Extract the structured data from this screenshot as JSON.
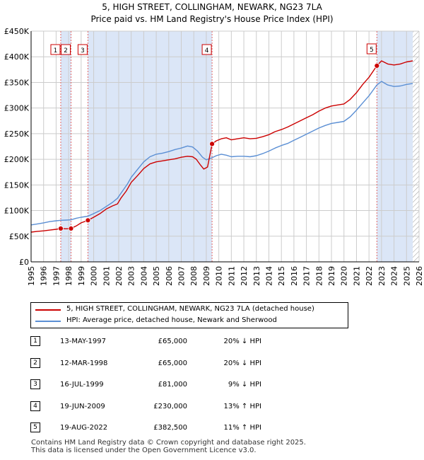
{
  "title": "5, HIGH STREET, COLLINGHAM, NEWARK, NG23 7LA",
  "subtitle": "Price paid vs. HM Land Registry's House Price Index (HPI)",
  "colors": {
    "property": "#cc0000",
    "hpi": "#5b8fd4",
    "shade": "#dbe6f7",
    "grid": "#cccccc",
    "sale_vline": "#e06666",
    "hatch": "#999999"
  },
  "chart_data": {
    "type": "line",
    "title": "5, HIGH STREET, COLLINGHAM, NEWARK, NG23 7LA",
    "xlim": [
      1995,
      2026
    ],
    "ylim": [
      0,
      450000
    ],
    "x_ticks": [
      1995,
      1996,
      1997,
      1998,
      1999,
      2000,
      2001,
      2002,
      2003,
      2004,
      2005,
      2006,
      2007,
      2008,
      2009,
      2010,
      2011,
      2012,
      2013,
      2014,
      2015,
      2016,
      2017,
      2018,
      2019,
      2020,
      2021,
      2022,
      2023,
      2024,
      2025,
      2026
    ],
    "y_ticks": [
      {
        "value": 0,
        "label": "£0"
      },
      {
        "value": 50000,
        "label": "£50K"
      },
      {
        "value": 100000,
        "label": "£100K"
      },
      {
        "value": 150000,
        "label": "£150K"
      },
      {
        "value": 200000,
        "label": "£200K"
      },
      {
        "value": 250000,
        "label": "£250K"
      },
      {
        "value": 300000,
        "label": "£300K"
      },
      {
        "value": 350000,
        "label": "£350K"
      },
      {
        "value": 400000,
        "label": "£400K"
      },
      {
        "value": 450000,
        "label": "£450K"
      }
    ],
    "shaded_periods": [
      [
        1997.37,
        1998.19
      ],
      [
        1999.54,
        2009.46
      ],
      [
        2022.63,
        2025.5
      ]
    ],
    "future_hatch_from": 2025.5,
    "series": [
      {
        "name": "5, HIGH STREET, COLLINGHAM, NEWARK, NG23 7LA (detached house)",
        "color": "#cc0000",
        "points": [
          [
            1995.0,
            58000
          ],
          [
            1995.5,
            59500
          ],
          [
            1996.0,
            60500
          ],
          [
            1996.5,
            62000
          ],
          [
            1997.0,
            63500
          ],
          [
            1997.37,
            65000
          ],
          [
            1997.8,
            64500
          ],
          [
            1998.19,
            65000
          ],
          [
            1998.6,
            70000
          ],
          [
            1999.0,
            76000
          ],
          [
            1999.54,
            81000
          ],
          [
            2000.0,
            87000
          ],
          [
            2000.5,
            94000
          ],
          [
            2001.0,
            103000
          ],
          [
            2001.5,
            109000
          ],
          [
            2001.9,
            113000
          ],
          [
            2002.2,
            125000
          ],
          [
            2002.6,
            138000
          ],
          [
            2003.0,
            155000
          ],
          [
            2003.5,
            168000
          ],
          [
            2004.0,
            182000
          ],
          [
            2004.5,
            191000
          ],
          [
            2005.0,
            195000
          ],
          [
            2005.5,
            197000
          ],
          [
            2006.0,
            199000
          ],
          [
            2006.5,
            201000
          ],
          [
            2007.0,
            204000
          ],
          [
            2007.5,
            206000
          ],
          [
            2007.9,
            205000
          ],
          [
            2008.2,
            200000
          ],
          [
            2008.5,
            190000
          ],
          [
            2008.8,
            181000
          ],
          [
            2009.1,
            185000
          ],
          [
            2009.46,
            230000
          ],
          [
            2009.8,
            236000
          ],
          [
            2010.2,
            240000
          ],
          [
            2010.6,
            242000
          ],
          [
            2011.0,
            238000
          ],
          [
            2011.5,
            240000
          ],
          [
            2012.0,
            242000
          ],
          [
            2012.5,
            240000
          ],
          [
            2013.0,
            241000
          ],
          [
            2013.5,
            244000
          ],
          [
            2014.0,
            248000
          ],
          [
            2014.5,
            254000
          ],
          [
            2015.0,
            258000
          ],
          [
            2015.5,
            263000
          ],
          [
            2016.0,
            269000
          ],
          [
            2016.5,
            275000
          ],
          [
            2017.0,
            281000
          ],
          [
            2017.5,
            287000
          ],
          [
            2018.0,
            294000
          ],
          [
            2018.5,
            300000
          ],
          [
            2019.0,
            304000
          ],
          [
            2019.5,
            306000
          ],
          [
            2020.0,
            308000
          ],
          [
            2020.5,
            317000
          ],
          [
            2021.0,
            330000
          ],
          [
            2021.5,
            346000
          ],
          [
            2022.0,
            360000
          ],
          [
            2022.63,
            382500
          ],
          [
            2023.0,
            392000
          ],
          [
            2023.5,
            386000
          ],
          [
            2024.0,
            384000
          ],
          [
            2024.5,
            386000
          ],
          [
            2025.0,
            390000
          ],
          [
            2025.5,
            392000
          ]
        ]
      },
      {
        "name": "HPI: Average price, detached house, Newark and Sherwood",
        "color": "#5b8fd4",
        "points": [
          [
            1995.0,
            72000
          ],
          [
            1995.5,
            74000
          ],
          [
            1996.0,
            76000
          ],
          [
            1996.5,
            78500
          ],
          [
            1997.0,
            80000
          ],
          [
            1997.37,
            81000
          ],
          [
            1997.8,
            81500
          ],
          [
            1998.19,
            82000
          ],
          [
            1998.6,
            85000
          ],
          [
            1999.0,
            87000
          ],
          [
            1999.54,
            89000
          ],
          [
            2000.0,
            94000
          ],
          [
            2000.5,
            100000
          ],
          [
            2001.0,
            108000
          ],
          [
            2001.5,
            116000
          ],
          [
            2001.9,
            124000
          ],
          [
            2002.3,
            138000
          ],
          [
            2002.7,
            152000
          ],
          [
            2003.0,
            165000
          ],
          [
            2003.5,
            180000
          ],
          [
            2004.0,
            195000
          ],
          [
            2004.5,
            205000
          ],
          [
            2005.0,
            210000
          ],
          [
            2005.5,
            212000
          ],
          [
            2006.0,
            215000
          ],
          [
            2006.5,
            219000
          ],
          [
            2007.0,
            222000
          ],
          [
            2007.5,
            226000
          ],
          [
            2007.9,
            224000
          ],
          [
            2008.3,
            216000
          ],
          [
            2008.7,
            204000
          ],
          [
            2009.0,
            199000
          ],
          [
            2009.46,
            203000
          ],
          [
            2009.8,
            207000
          ],
          [
            2010.2,
            210000
          ],
          [
            2010.6,
            208000
          ],
          [
            2011.0,
            205000
          ],
          [
            2011.5,
            206000
          ],
          [
            2012.0,
            206000
          ],
          [
            2012.5,
            205000
          ],
          [
            2013.0,
            207000
          ],
          [
            2013.5,
            211000
          ],
          [
            2014.0,
            216000
          ],
          [
            2014.5,
            222000
          ],
          [
            2015.0,
            227000
          ],
          [
            2015.5,
            231000
          ],
          [
            2016.0,
            237000
          ],
          [
            2016.5,
            243000
          ],
          [
            2017.0,
            249000
          ],
          [
            2017.5,
            255000
          ],
          [
            2018.0,
            261000
          ],
          [
            2018.5,
            266000
          ],
          [
            2019.0,
            270000
          ],
          [
            2019.5,
            272000
          ],
          [
            2020.0,
            274000
          ],
          [
            2020.5,
            283000
          ],
          [
            2021.0,
            296000
          ],
          [
            2021.5,
            310000
          ],
          [
            2022.0,
            324000
          ],
          [
            2022.63,
            345000
          ],
          [
            2023.0,
            352000
          ],
          [
            2023.5,
            345000
          ],
          [
            2024.0,
            342000
          ],
          [
            2024.5,
            343000
          ],
          [
            2025.0,
            346000
          ],
          [
            2025.5,
            348000
          ]
        ]
      }
    ],
    "sales": [
      {
        "id": "1",
        "x": 1997.37,
        "price": 65000
      },
      {
        "id": "2",
        "x": 1998.19,
        "price": 65000
      },
      {
        "id": "3",
        "x": 1999.54,
        "price": 81000
      },
      {
        "id": "4",
        "x": 2009.46,
        "price": 230000
      },
      {
        "id": "5",
        "x": 2022.63,
        "price": 382500
      }
    ]
  },
  "legend": {
    "property_label": "5, HIGH STREET, COLLINGHAM, NEWARK, NG23 7LA (detached house)",
    "hpi_label": "HPI: Average price, detached house, Newark and Sherwood"
  },
  "sales_table": [
    {
      "num": "1",
      "date": "13-MAY-1997",
      "price": "£65,000",
      "hpi": "20% ↓ HPI"
    },
    {
      "num": "2",
      "date": "12-MAR-1998",
      "price": "£65,000",
      "hpi": "20% ↓ HPI"
    },
    {
      "num": "3",
      "date": "16-JUL-1999",
      "price": "£81,000",
      "hpi": "9% ↓ HPI"
    },
    {
      "num": "4",
      "date": "19-JUN-2009",
      "price": "£230,000",
      "hpi": "13% ↑ HPI"
    },
    {
      "num": "5",
      "date": "19-AUG-2022",
      "price": "£382,500",
      "hpi": "11% ↑ HPI"
    }
  ],
  "footer": {
    "line1": "Contains HM Land Registry data © Crown copyright and database right 2025.",
    "line2": "This data is licensed under the Open Government Licence v3.0."
  }
}
